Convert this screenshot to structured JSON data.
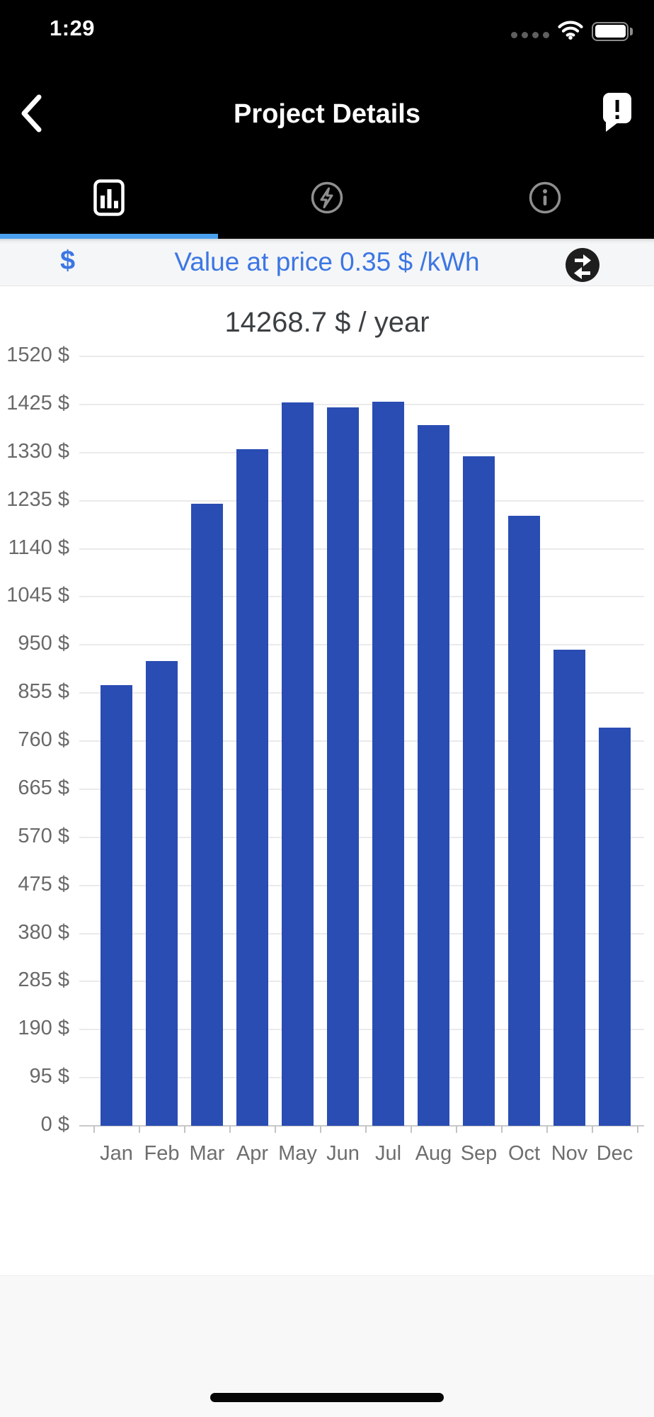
{
  "status_bar": {
    "time": "1:29",
    "icons": [
      "cellular-dots",
      "wifi",
      "battery-full"
    ]
  },
  "header": {
    "title": "Project Details",
    "left_icon": "back-chevron",
    "right_icon": "feedback-bubble"
  },
  "tab_bar": {
    "active_index": 0,
    "underline_color": "#4aa0ef",
    "tabs": [
      {
        "id": "chart",
        "icon": "bar-chart-icon",
        "active": true
      },
      {
        "id": "energy",
        "icon": "energy-bolt-icon",
        "active": false
      },
      {
        "id": "info",
        "icon": "info-circle-icon",
        "active": false
      }
    ]
  },
  "price_row": {
    "currency_symbol": "$",
    "label": "Value at price 0.35 $ /kWh",
    "action_icon": "swap-arrows",
    "text_color": "#3c76e4"
  },
  "chart_data": {
    "type": "bar",
    "title": "14268.7 $ / year",
    "categories": [
      "Jan",
      "Feb",
      "Mar",
      "Apr",
      "May",
      "Jun",
      "Jul",
      "Aug",
      "Sep",
      "Oct",
      "Nov",
      "Dec"
    ],
    "values": [
      870,
      918,
      1229,
      1336,
      1429,
      1419,
      1430,
      1384,
      1322,
      1205,
      941,
      786
    ],
    "unit": "$",
    "ylim": [
      0,
      1520
    ],
    "y_tick_step": 95,
    "y_ticks": [
      {
        "value": 0,
        "label": "0 $"
      },
      {
        "value": 95,
        "label": "95 $"
      },
      {
        "value": 190,
        "label": "190 $"
      },
      {
        "value": 285,
        "label": "285 $"
      },
      {
        "value": 380,
        "label": "380 $"
      },
      {
        "value": 475,
        "label": "475 $"
      },
      {
        "value": 570,
        "label": "570 $"
      },
      {
        "value": 665,
        "label": "665 $"
      },
      {
        "value": 760,
        "label": "760 $"
      },
      {
        "value": 855,
        "label": "855 $"
      },
      {
        "value": 950,
        "label": "950 $"
      },
      {
        "value": 1045,
        "label": "1045 $"
      },
      {
        "value": 1140,
        "label": "1140 $"
      },
      {
        "value": 1235,
        "label": "1235 $"
      },
      {
        "value": 1330,
        "label": "1330 $"
      },
      {
        "value": 1425,
        "label": "1425 $"
      },
      {
        "value": 1520,
        "label": "1520 $"
      }
    ],
    "grid": true,
    "legend": false,
    "bar_color": "#2a4db3",
    "axis_label_color": "#6b6b6b"
  },
  "footer": {
    "home_indicator": true
  }
}
